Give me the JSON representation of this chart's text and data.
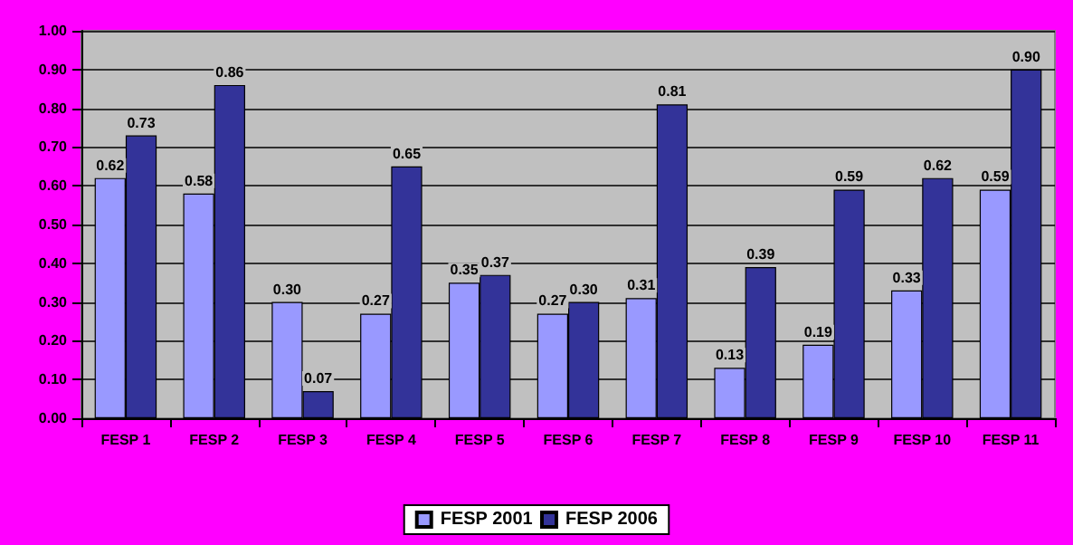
{
  "chart_data": {
    "type": "bar",
    "categories": [
      "FESP 1",
      "FESP 2",
      "FESP 3",
      "FESP 4",
      "FESP 5",
      "FESP 6",
      "FESP 7",
      "FESP 8",
      "FESP 9",
      "FESP 10",
      "FESP 11"
    ],
    "series": [
      {
        "name": "FESP 2001",
        "color": "#9999ff",
        "values": [
          0.62,
          0.58,
          0.3,
          0.27,
          0.35,
          0.27,
          0.31,
          0.13,
          0.19,
          0.33,
          0.59
        ],
        "value_labels": [
          "0.62",
          "0.58",
          "0.30",
          "0.27",
          "0.35",
          "0.27",
          "0.31",
          "0.13",
          "0.19",
          "0.33",
          "0.59"
        ]
      },
      {
        "name": "FESP 2006",
        "color": "#333399",
        "values": [
          0.73,
          0.86,
          0.07,
          0.65,
          0.37,
          0.3,
          0.81,
          0.39,
          0.59,
          0.62,
          0.9
        ],
        "value_labels": [
          "0.73",
          "0.86",
          "0.07",
          "0.65",
          "0.37",
          "0.30",
          "0.81",
          "0.39",
          "0.59",
          "0.62",
          "0.90"
        ]
      }
    ],
    "ylim": [
      0,
      1
    ],
    "yticks": [
      {
        "value": 0,
        "label": "0.00"
      },
      {
        "value": 0.1,
        "label": "0.10"
      },
      {
        "value": 0.2,
        "label": "0.20"
      },
      {
        "value": 0.3,
        "label": "0.30"
      },
      {
        "value": 0.4,
        "label": "0.40"
      },
      {
        "value": 0.5,
        "label": "0.50"
      },
      {
        "value": 0.6,
        "label": "0.60"
      },
      {
        "value": 0.7,
        "label": "0.70"
      },
      {
        "value": 0.8,
        "label": "0.80"
      },
      {
        "value": 0.9,
        "label": "0.90"
      },
      {
        "value": 1,
        "label": "1.00"
      }
    ],
    "grid": "y",
    "legend": "bottom"
  }
}
